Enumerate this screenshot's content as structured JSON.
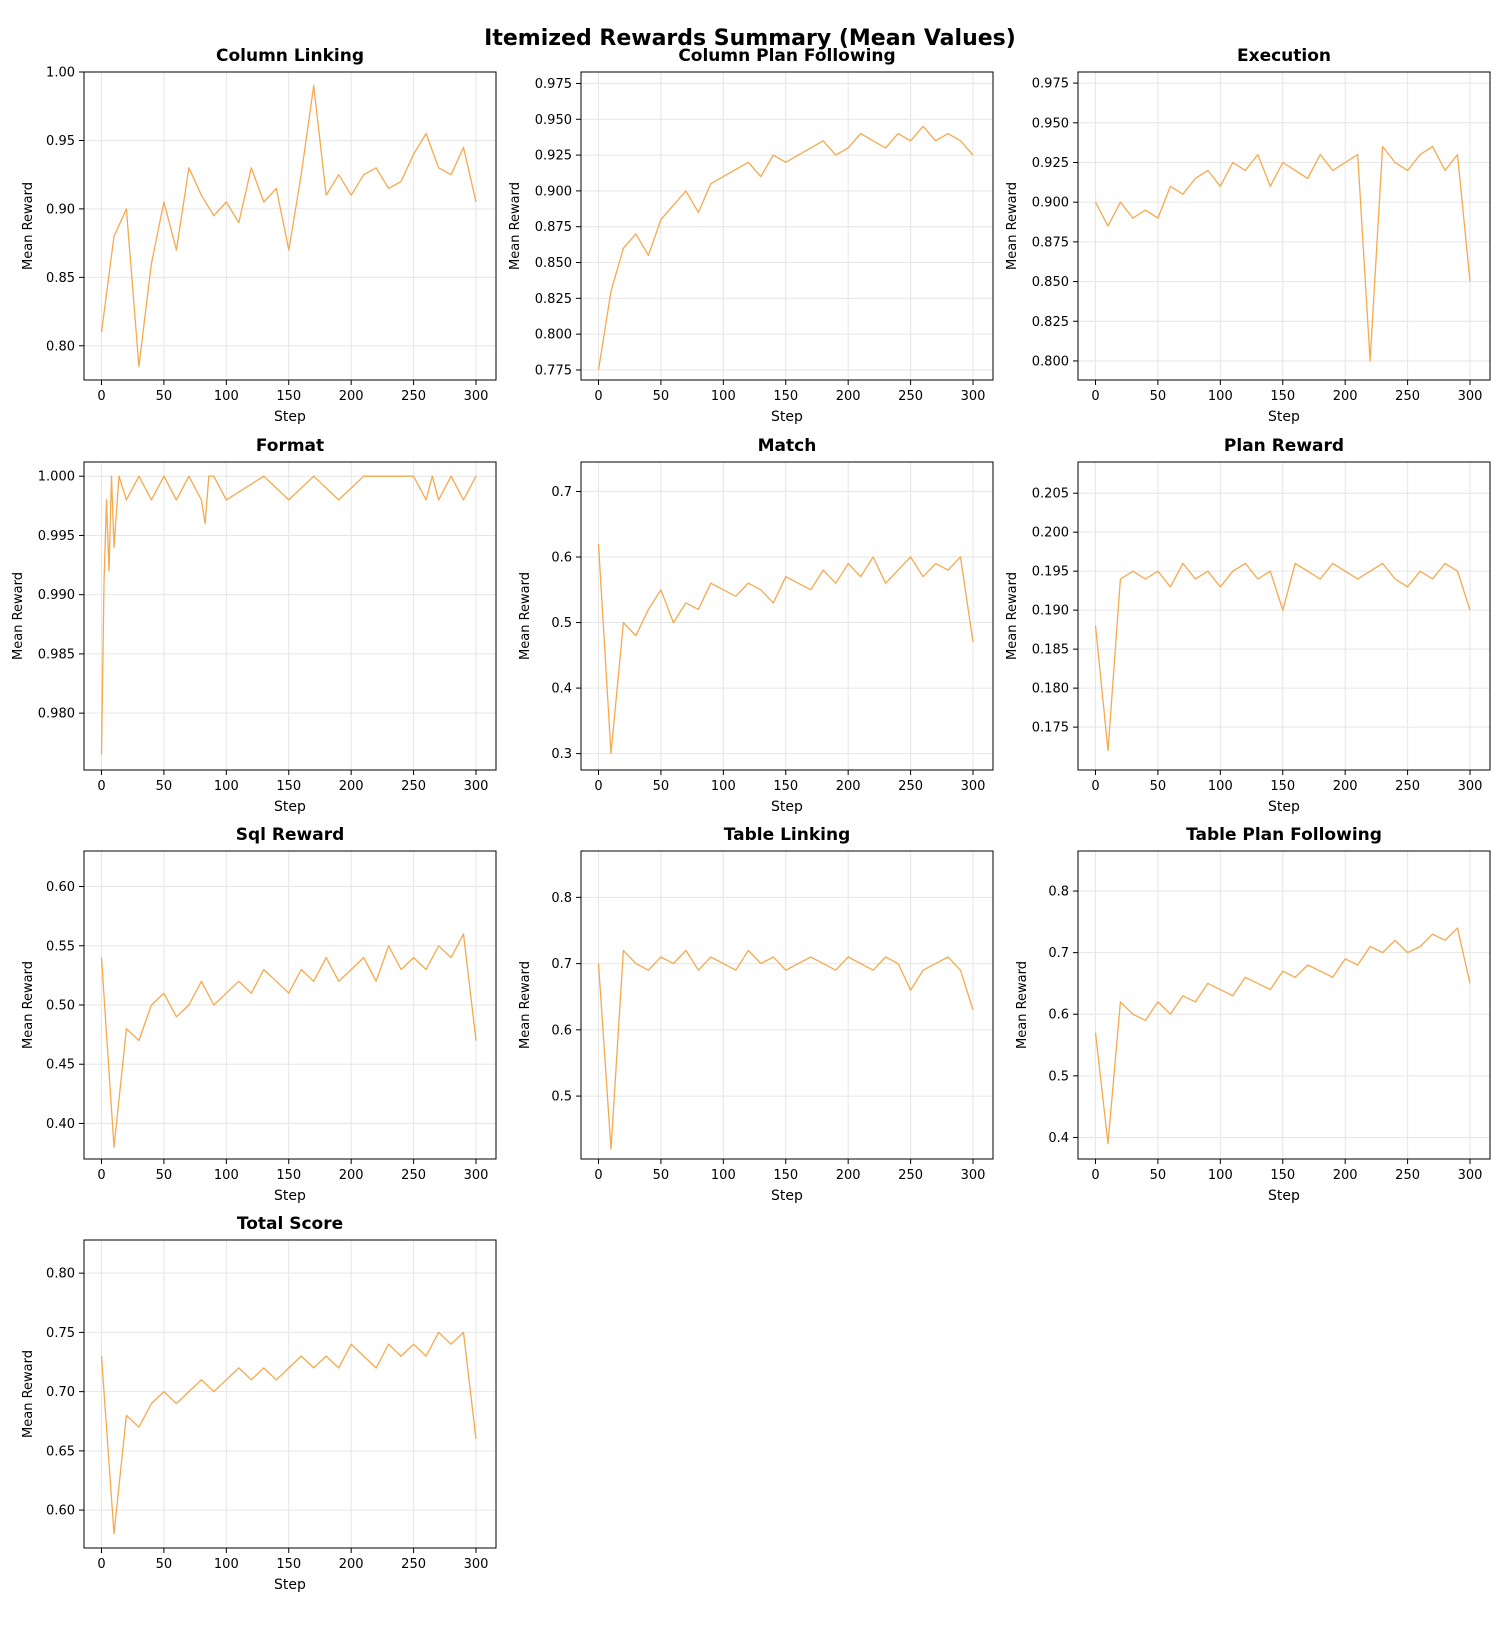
{
  "figure": {
    "title": "Itemized Rewards Summary (Mean Values)"
  },
  "style": {
    "line_color": "#f5a444",
    "grid_color": "#e6e6e6",
    "axes_color": "#000000",
    "background": "#ffffff"
  },
  "chart_data": [
    {
      "type": "line",
      "title": "Column Linking",
      "xlabel": "Step",
      "ylabel": "Mean Reward",
      "xlim": [
        -14,
        316
      ],
      "ylim": [
        0.775,
        1.0
      ],
      "xticks": [
        0,
        50,
        100,
        150,
        200,
        250,
        300
      ],
      "xtick_labels": [
        "0",
        "50",
        "100",
        "150",
        "200",
        "250",
        "300"
      ],
      "yticks": [
        0.8,
        0.85,
        0.9,
        0.95,
        1.0
      ],
      "ytick_labels": [
        "0.80",
        "0.85",
        "0.90",
        "0.95",
        "1.00"
      ],
      "grid": true,
      "series": [
        {
          "x": [
            0,
            10,
            20,
            30,
            40,
            50,
            60,
            70,
            80,
            90,
            100,
            110,
            120,
            130,
            140,
            150,
            160,
            170,
            180,
            190,
            200,
            210,
            220,
            230,
            240,
            250,
            260,
            270,
            280,
            290,
            300
          ],
          "y": [
            0.81,
            0.88,
            0.9,
            0.785,
            0.86,
            0.905,
            0.87,
            0.93,
            0.91,
            0.895,
            0.905,
            0.89,
            0.93,
            0.905,
            0.915,
            0.87,
            0.925,
            0.99,
            0.91,
            0.925,
            0.91,
            0.925,
            0.93,
            0.915,
            0.92,
            0.94,
            0.955,
            0.93,
            0.925,
            0.945,
            0.905
          ]
        }
      ]
    },
    {
      "type": "line",
      "title": "Column Plan Following",
      "xlabel": "Step",
      "ylabel": "Mean Reward",
      "xlim": [
        -14,
        316
      ],
      "ylim": [
        0.768,
        0.983
      ],
      "xticks": [
        0,
        50,
        100,
        150,
        200,
        250,
        300
      ],
      "xtick_labels": [
        "0",
        "50",
        "100",
        "150",
        "200",
        "250",
        "300"
      ],
      "yticks": [
        0.775,
        0.8,
        0.825,
        0.85,
        0.875,
        0.9,
        0.925,
        0.95,
        0.975
      ],
      "ytick_labels": [
        "0.775",
        "0.800",
        "0.825",
        "0.850",
        "0.875",
        "0.900",
        "0.925",
        "0.950",
        "0.975"
      ],
      "grid": true,
      "series": [
        {
          "x": [
            0,
            10,
            20,
            30,
            40,
            50,
            60,
            70,
            80,
            90,
            100,
            110,
            120,
            130,
            140,
            150,
            160,
            170,
            180,
            190,
            200,
            210,
            220,
            230,
            240,
            250,
            260,
            270,
            280,
            290,
            300
          ],
          "y": [
            0.775,
            0.83,
            0.86,
            0.87,
            0.855,
            0.88,
            0.89,
            0.9,
            0.885,
            0.905,
            0.91,
            0.915,
            0.92,
            0.91,
            0.925,
            0.92,
            0.925,
            0.93,
            0.935,
            0.925,
            0.93,
            0.94,
            0.935,
            0.93,
            0.94,
            0.935,
            0.945,
            0.935,
            0.94,
            0.935,
            0.925
          ]
        }
      ]
    },
    {
      "type": "line",
      "title": "Execution",
      "xlabel": "Step",
      "ylabel": "Mean Reward",
      "xlim": [
        -14,
        316
      ],
      "ylim": [
        0.788,
        0.982
      ],
      "xticks": [
        0,
        50,
        100,
        150,
        200,
        250,
        300
      ],
      "xtick_labels": [
        "0",
        "50",
        "100",
        "150",
        "200",
        "250",
        "300"
      ],
      "yticks": [
        0.8,
        0.825,
        0.85,
        0.875,
        0.9,
        0.925,
        0.95,
        0.975
      ],
      "ytick_labels": [
        "0.800",
        "0.825",
        "0.850",
        "0.875",
        "0.900",
        "0.925",
        "0.950",
        "0.975"
      ],
      "grid": true,
      "series": [
        {
          "x": [
            0,
            10,
            20,
            30,
            40,
            50,
            60,
            70,
            80,
            90,
            100,
            110,
            120,
            130,
            140,
            150,
            160,
            170,
            180,
            190,
            200,
            210,
            220,
            230,
            240,
            250,
            260,
            270,
            280,
            290,
            300
          ],
          "y": [
            0.9,
            0.885,
            0.9,
            0.89,
            0.895,
            0.89,
            0.91,
            0.905,
            0.915,
            0.92,
            0.91,
            0.925,
            0.92,
            0.93,
            0.91,
            0.925,
            0.92,
            0.915,
            0.93,
            0.92,
            0.925,
            0.93,
            0.8,
            0.935,
            0.925,
            0.92,
            0.93,
            0.935,
            0.92,
            0.93,
            0.85
          ]
        }
      ]
    },
    {
      "type": "line",
      "title": "Format",
      "xlabel": "Step",
      "ylabel": "Mean Reward",
      "xlim": [
        -14,
        316
      ],
      "ylim": [
        0.9752,
        1.0012
      ],
      "xticks": [
        0,
        50,
        100,
        150,
        200,
        250,
        300
      ],
      "xtick_labels": [
        "0",
        "50",
        "100",
        "150",
        "200",
        "250",
        "300"
      ],
      "yticks": [
        0.98,
        0.985,
        0.99,
        0.995,
        1.0
      ],
      "ytick_labels": [
        "0.980",
        "0.985",
        "0.990",
        "0.995",
        "1.000"
      ],
      "grid": true,
      "series": [
        {
          "x": [
            0,
            2,
            4,
            6,
            8,
            10,
            14,
            20,
            30,
            40,
            50,
            60,
            70,
            80,
            83,
            86,
            90,
            100,
            130,
            150,
            170,
            190,
            210,
            250,
            260,
            265,
            270,
            280,
            290,
            300
          ],
          "y": [
            0.9765,
            0.991,
            0.998,
            0.992,
            1.0,
            0.994,
            1.0,
            0.998,
            1.0,
            0.998,
            1.0,
            0.998,
            1.0,
            0.998,
            0.996,
            1.0,
            1.0,
            0.998,
            1.0,
            0.998,
            1.0,
            0.998,
            1.0,
            1.0,
            0.998,
            1.0,
            0.998,
            1.0,
            0.998,
            1.0
          ]
        }
      ]
    },
    {
      "type": "line",
      "title": "Match",
      "xlabel": "Step",
      "ylabel": "Mean Reward",
      "xlim": [
        -14,
        316
      ],
      "ylim": [
        0.275,
        0.745
      ],
      "xticks": [
        0,
        50,
        100,
        150,
        200,
        250,
        300
      ],
      "xtick_labels": [
        "0",
        "50",
        "100",
        "150",
        "200",
        "250",
        "300"
      ],
      "yticks": [
        0.3,
        0.4,
        0.5,
        0.6,
        0.7
      ],
      "ytick_labels": [
        "0.3",
        "0.4",
        "0.5",
        "0.6",
        "0.7"
      ],
      "grid": true,
      "series": [
        {
          "x": [
            0,
            10,
            20,
            30,
            40,
            50,
            60,
            70,
            80,
            90,
            100,
            110,
            120,
            130,
            140,
            150,
            160,
            170,
            180,
            190,
            200,
            210,
            220,
            230,
            240,
            250,
            260,
            270,
            280,
            290,
            300
          ],
          "y": [
            0.62,
            0.3,
            0.5,
            0.48,
            0.52,
            0.55,
            0.5,
            0.53,
            0.52,
            0.56,
            0.55,
            0.54,
            0.56,
            0.55,
            0.53,
            0.57,
            0.56,
            0.55,
            0.58,
            0.56,
            0.59,
            0.57,
            0.6,
            0.56,
            0.58,
            0.6,
            0.57,
            0.59,
            0.58,
            0.6,
            0.47
          ]
        }
      ]
    },
    {
      "type": "line",
      "title": "Plan Reward",
      "xlabel": "Step",
      "ylabel": "Mean Reward",
      "xlim": [
        -14,
        316
      ],
      "ylim": [
        0.1695,
        0.209
      ],
      "xticks": [
        0,
        50,
        100,
        150,
        200,
        250,
        300
      ],
      "xtick_labels": [
        "0",
        "50",
        "100",
        "150",
        "200",
        "250",
        "300"
      ],
      "yticks": [
        0.175,
        0.18,
        0.185,
        0.19,
        0.195,
        0.2,
        0.205
      ],
      "ytick_labels": [
        "0.175",
        "0.180",
        "0.185",
        "0.190",
        "0.195",
        "0.200",
        "0.205"
      ],
      "grid": true,
      "series": [
        {
          "x": [
            0,
            10,
            20,
            30,
            40,
            50,
            60,
            70,
            80,
            90,
            100,
            110,
            120,
            130,
            140,
            150,
            160,
            170,
            180,
            190,
            200,
            210,
            220,
            230,
            240,
            250,
            260,
            270,
            280,
            290,
            300
          ],
          "y": [
            0.188,
            0.172,
            0.194,
            0.195,
            0.194,
            0.195,
            0.193,
            0.196,
            0.194,
            0.195,
            0.193,
            0.195,
            0.196,
            0.194,
            0.195,
            0.19,
            0.196,
            0.195,
            0.194,
            0.196,
            0.195,
            0.194,
            0.195,
            0.196,
            0.194,
            0.193,
            0.195,
            0.194,
            0.196,
            0.195,
            0.19
          ]
        }
      ]
    },
    {
      "type": "line",
      "title": "Sql Reward",
      "xlabel": "Step",
      "ylabel": "Mean Reward",
      "xlim": [
        -14,
        316
      ],
      "ylim": [
        0.37,
        0.63
      ],
      "xticks": [
        0,
        50,
        100,
        150,
        200,
        250,
        300
      ],
      "xtick_labels": [
        "0",
        "50",
        "100",
        "150",
        "200",
        "250",
        "300"
      ],
      "yticks": [
        0.4,
        0.45,
        0.5,
        0.55,
        0.6
      ],
      "ytick_labels": [
        "0.40",
        "0.45",
        "0.50",
        "0.55",
        "0.60"
      ],
      "grid": true,
      "series": [
        {
          "x": [
            0,
            10,
            20,
            30,
            40,
            50,
            60,
            70,
            80,
            90,
            100,
            110,
            120,
            130,
            140,
            150,
            160,
            170,
            180,
            190,
            200,
            210,
            220,
            230,
            240,
            250,
            260,
            270,
            280,
            290,
            300
          ],
          "y": [
            0.54,
            0.38,
            0.48,
            0.47,
            0.5,
            0.51,
            0.49,
            0.5,
            0.52,
            0.5,
            0.51,
            0.52,
            0.51,
            0.53,
            0.52,
            0.51,
            0.53,
            0.52,
            0.54,
            0.52,
            0.53,
            0.54,
            0.52,
            0.55,
            0.53,
            0.54,
            0.53,
            0.55,
            0.54,
            0.56,
            0.47
          ]
        }
      ]
    },
    {
      "type": "line",
      "title": "Table Linking",
      "xlabel": "Step",
      "ylabel": "Mean Reward",
      "xlim": [
        -14,
        316
      ],
      "ylim": [
        0.405,
        0.87
      ],
      "xticks": [
        0,
        50,
        100,
        150,
        200,
        250,
        300
      ],
      "xtick_labels": [
        "0",
        "50",
        "100",
        "150",
        "200",
        "250",
        "300"
      ],
      "yticks": [
        0.5,
        0.6,
        0.7,
        0.8
      ],
      "ytick_labels": [
        "0.5",
        "0.6",
        "0.7",
        "0.8"
      ],
      "grid": true,
      "series": [
        {
          "x": [
            0,
            10,
            20,
            30,
            40,
            50,
            60,
            70,
            80,
            90,
            100,
            110,
            120,
            130,
            140,
            150,
            160,
            170,
            180,
            190,
            200,
            210,
            220,
            230,
            240,
            250,
            260,
            270,
            280,
            290,
            300
          ],
          "y": [
            0.7,
            0.42,
            0.72,
            0.7,
            0.69,
            0.71,
            0.7,
            0.72,
            0.69,
            0.71,
            0.7,
            0.69,
            0.72,
            0.7,
            0.71,
            0.69,
            0.7,
            0.71,
            0.7,
            0.69,
            0.71,
            0.7,
            0.69,
            0.71,
            0.7,
            0.66,
            0.69,
            0.7,
            0.71,
            0.69,
            0.63
          ]
        }
      ]
    },
    {
      "type": "line",
      "title": "Table Plan Following",
      "xlabel": "Step",
      "ylabel": "Mean Reward",
      "xlim": [
        -14,
        316
      ],
      "ylim": [
        0.365,
        0.865
      ],
      "xticks": [
        0,
        50,
        100,
        150,
        200,
        250,
        300
      ],
      "xtick_labels": [
        "0",
        "50",
        "100",
        "150",
        "200",
        "250",
        "300"
      ],
      "yticks": [
        0.4,
        0.5,
        0.6,
        0.7,
        0.8
      ],
      "ytick_labels": [
        "0.4",
        "0.5",
        "0.6",
        "0.7",
        "0.8"
      ],
      "grid": true,
      "series": [
        {
          "x": [
            0,
            10,
            20,
            30,
            40,
            50,
            60,
            70,
            80,
            90,
            100,
            110,
            120,
            130,
            140,
            150,
            160,
            170,
            180,
            190,
            200,
            210,
            220,
            230,
            240,
            250,
            260,
            270,
            280,
            290,
            300
          ],
          "y": [
            0.57,
            0.39,
            0.62,
            0.6,
            0.59,
            0.62,
            0.6,
            0.63,
            0.62,
            0.65,
            0.64,
            0.63,
            0.66,
            0.65,
            0.64,
            0.67,
            0.66,
            0.68,
            0.67,
            0.66,
            0.69,
            0.68,
            0.71,
            0.7,
            0.72,
            0.7,
            0.71,
            0.73,
            0.72,
            0.74,
            0.65
          ]
        }
      ]
    },
    {
      "type": "line",
      "title": "Total Score",
      "xlabel": "Step",
      "ylabel": "Mean Reward",
      "xlim": [
        -14,
        316
      ],
      "ylim": [
        0.568,
        0.828
      ],
      "xticks": [
        0,
        50,
        100,
        150,
        200,
        250,
        300
      ],
      "xtick_labels": [
        "0",
        "50",
        "100",
        "150",
        "200",
        "250",
        "300"
      ],
      "yticks": [
        0.6,
        0.65,
        0.7,
        0.75,
        0.8
      ],
      "ytick_labels": [
        "0.60",
        "0.65",
        "0.70",
        "0.75",
        "0.80"
      ],
      "grid": true,
      "series": [
        {
          "x": [
            0,
            10,
            20,
            30,
            40,
            50,
            60,
            70,
            80,
            90,
            100,
            110,
            120,
            130,
            140,
            150,
            160,
            170,
            180,
            190,
            200,
            210,
            220,
            230,
            240,
            250,
            260,
            270,
            280,
            290,
            300
          ],
          "y": [
            0.73,
            0.58,
            0.68,
            0.67,
            0.69,
            0.7,
            0.69,
            0.7,
            0.71,
            0.7,
            0.71,
            0.72,
            0.71,
            0.72,
            0.71,
            0.72,
            0.73,
            0.72,
            0.73,
            0.72,
            0.74,
            0.73,
            0.72,
            0.74,
            0.73,
            0.74,
            0.73,
            0.75,
            0.74,
            0.75,
            0.66
          ]
        }
      ]
    }
  ]
}
